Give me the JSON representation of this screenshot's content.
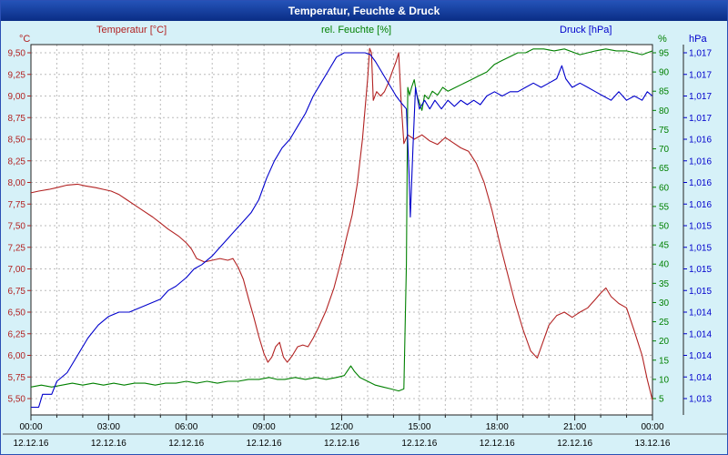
{
  "window": {
    "title": "Temperatur, Feuchte & Druck"
  },
  "header": {
    "temperature_label": "Temperatur [°C]",
    "humidity_label": "rel. Feuchte [%]",
    "pressure_label": "Druck [hPa]",
    "temperature_unit": "°C",
    "humidity_unit": "%",
    "pressure_unit": "hPa"
  },
  "colors": {
    "temperature": "#b22222",
    "humidity": "#008000",
    "pressure": "#0000cc",
    "background": "#d6f1f8",
    "plot_background": "#ffffff",
    "grid": "#bbbbbb",
    "titlebar": "#0a2d85"
  },
  "chart_data": {
    "type": "line",
    "title": "Temperatur, Feuchte & Druck",
    "xlabel": "",
    "legend_position": "top",
    "grid": "on, dashed, hourly vertical / 0.25°C horizontal",
    "x_axis": {
      "hours_range": [
        0,
        24
      ],
      "tick_labels": [
        "00:00",
        "03:00",
        "06:00",
        "09:00",
        "12:00",
        "15:00",
        "18:00",
        "21:00",
        "00:00"
      ],
      "date_labels": [
        "12.12.16",
        "12.12.16",
        "12.12.16",
        "12.12.16",
        "12.12.16",
        "12.12.16",
        "12.12.16",
        "12.12.16",
        "13.12.16"
      ]
    },
    "y_axes": {
      "temperature": {
        "unit": "°C",
        "color": "#b22222",
        "min": 5.5,
        "max": 9.5,
        "side": "left",
        "tick_labels": [
          "9,50",
          "9,25",
          "9,00",
          "8,75",
          "8,50",
          "8,25",
          "8,00",
          "7,75",
          "7,50",
          "7,25",
          "7,00",
          "6,75",
          "6,50",
          "6,25",
          "6,00",
          "5,75",
          "5,50"
        ]
      },
      "humidity": {
        "unit": "%",
        "color": "#008000",
        "min": 5,
        "max": 95,
        "side": "right-inner",
        "tick_labels": [
          "95",
          "90",
          "85",
          "80",
          "75",
          "70",
          "65",
          "60",
          "55",
          "50",
          "45",
          "40",
          "35",
          "30",
          "25",
          "20",
          "15",
          "10",
          "5"
        ]
      },
      "pressure": {
        "unit": "hPa",
        "color": "#0000cc",
        "min": 1013,
        "max": 1017,
        "side": "right-outer",
        "tick_labels": [
          "1,017",
          "1,017",
          "1,017",
          "1,017",
          "1,016",
          "1,016",
          "1,016",
          "1,016",
          "1,015",
          "1,015",
          "1,015",
          "1,015",
          "1,014",
          "1,014",
          "1,014",
          "1,014",
          "1,013"
        ]
      }
    },
    "series": [
      {
        "name": "Temperatur [°C]",
        "axis": "temperature",
        "color": "#b22222",
        "points": [
          [
            0,
            7.88
          ],
          [
            0.3,
            7.9
          ],
          [
            0.7,
            7.92
          ],
          [
            1,
            7.94
          ],
          [
            1.4,
            7.97
          ],
          [
            1.8,
            7.98
          ],
          [
            2.1,
            7.96
          ],
          [
            2.5,
            7.94
          ],
          [
            2.8,
            7.92
          ],
          [
            3.1,
            7.9
          ],
          [
            3.4,
            7.86
          ],
          [
            3.7,
            7.8
          ],
          [
            4,
            7.74
          ],
          [
            4.3,
            7.68
          ],
          [
            4.7,
            7.6
          ],
          [
            5,
            7.53
          ],
          [
            5.3,
            7.46
          ],
          [
            5.7,
            7.38
          ],
          [
            6,
            7.3
          ],
          [
            6.2,
            7.23
          ],
          [
            6.4,
            7.12
          ],
          [
            6.7,
            7.08
          ],
          [
            7,
            7.1
          ],
          [
            7.3,
            7.12
          ],
          [
            7.6,
            7.1
          ],
          [
            7.8,
            7.12
          ],
          [
            8,
            7.02
          ],
          [
            8.2,
            6.88
          ],
          [
            8.4,
            6.66
          ],
          [
            8.6,
            6.45
          ],
          [
            8.8,
            6.22
          ],
          [
            9,
            6.02
          ],
          [
            9.15,
            5.92
          ],
          [
            9.3,
            5.98
          ],
          [
            9.45,
            6.1
          ],
          [
            9.6,
            6.15
          ],
          [
            9.75,
            5.98
          ],
          [
            9.9,
            5.92
          ],
          [
            10.1,
            6.0
          ],
          [
            10.3,
            6.1
          ],
          [
            10.5,
            6.12
          ],
          [
            10.7,
            6.1
          ],
          [
            10.9,
            6.2
          ],
          [
            11.1,
            6.32
          ],
          [
            11.4,
            6.52
          ],
          [
            11.7,
            6.78
          ],
          [
            12,
            7.12
          ],
          [
            12.2,
            7.38
          ],
          [
            12.4,
            7.62
          ],
          [
            12.6,
            7.98
          ],
          [
            12.8,
            8.5
          ],
          [
            13,
            9.2
          ],
          [
            13.08,
            9.55
          ],
          [
            13.15,
            9.5
          ],
          [
            13.22,
            8.95
          ],
          [
            13.35,
            9.05
          ],
          [
            13.5,
            9.0
          ],
          [
            13.65,
            9.05
          ],
          [
            13.8,
            9.15
          ],
          [
            13.95,
            9.28
          ],
          [
            14.1,
            9.4
          ],
          [
            14.2,
            9.5
          ],
          [
            14.3,
            8.9
          ],
          [
            14.4,
            8.45
          ],
          [
            14.55,
            8.55
          ],
          [
            14.8,
            8.5
          ],
          [
            15.1,
            8.55
          ],
          [
            15.4,
            8.48
          ],
          [
            15.7,
            8.44
          ],
          [
            16,
            8.52
          ],
          [
            16.3,
            8.46
          ],
          [
            16.6,
            8.4
          ],
          [
            16.9,
            8.36
          ],
          [
            17.2,
            8.22
          ],
          [
            17.5,
            8.0
          ],
          [
            17.8,
            7.68
          ],
          [
            18.1,
            7.3
          ],
          [
            18.4,
            6.95
          ],
          [
            18.7,
            6.6
          ],
          [
            19,
            6.3
          ],
          [
            19.3,
            6.05
          ],
          [
            19.55,
            5.97
          ],
          [
            19.8,
            6.18
          ],
          [
            20,
            6.35
          ],
          [
            20.3,
            6.46
          ],
          [
            20.6,
            6.5
          ],
          [
            20.9,
            6.44
          ],
          [
            21.2,
            6.5
          ],
          [
            21.5,
            6.55
          ],
          [
            21.8,
            6.65
          ],
          [
            22,
            6.72
          ],
          [
            22.2,
            6.78
          ],
          [
            22.4,
            6.68
          ],
          [
            22.7,
            6.6
          ],
          [
            23,
            6.55
          ],
          [
            23.3,
            6.28
          ],
          [
            23.6,
            6.0
          ],
          [
            23.8,
            5.72
          ],
          [
            24,
            5.48
          ]
        ]
      },
      {
        "name": "rel. Feuchte [%]",
        "axis": "humidity",
        "color": "#008000",
        "points": [
          [
            0,
            8
          ],
          [
            0.4,
            8.5
          ],
          [
            0.8,
            8
          ],
          [
            1.2,
            8.5
          ],
          [
            1.6,
            9
          ],
          [
            2,
            8.5
          ],
          [
            2.4,
            9
          ],
          [
            2.8,
            8.5
          ],
          [
            3.2,
            9
          ],
          [
            3.6,
            8.5
          ],
          [
            4,
            9
          ],
          [
            4.4,
            9
          ],
          [
            4.8,
            8.5
          ],
          [
            5.2,
            9
          ],
          [
            5.6,
            9
          ],
          [
            6,
            9.5
          ],
          [
            6.4,
            9
          ],
          [
            6.8,
            9.5
          ],
          [
            7.2,
            9
          ],
          [
            7.6,
            9.5
          ],
          [
            8,
            9.5
          ],
          [
            8.4,
            10
          ],
          [
            8.8,
            10
          ],
          [
            9.2,
            10.5
          ],
          [
            9.5,
            10
          ],
          [
            9.8,
            10
          ],
          [
            10.2,
            10.5
          ],
          [
            10.6,
            10
          ],
          [
            11,
            10.5
          ],
          [
            11.4,
            10
          ],
          [
            11.8,
            10.5
          ],
          [
            12.1,
            11
          ],
          [
            12.35,
            13.5
          ],
          [
            12.5,
            12
          ],
          [
            12.7,
            10.5
          ],
          [
            13,
            9.5
          ],
          [
            13.3,
            8.5
          ],
          [
            13.6,
            8
          ],
          [
            13.9,
            7.5
          ],
          [
            14.2,
            7
          ],
          [
            14.4,
            7.5
          ],
          [
            14.5,
            40
          ],
          [
            14.55,
            86
          ],
          [
            14.62,
            84
          ],
          [
            14.7,
            86
          ],
          [
            14.8,
            88
          ],
          [
            14.9,
            84
          ],
          [
            15,
            82
          ],
          [
            15.1,
            80
          ],
          [
            15.2,
            84
          ],
          [
            15.35,
            83
          ],
          [
            15.5,
            85
          ],
          [
            15.7,
            84
          ],
          [
            15.9,
            86
          ],
          [
            16.1,
            85
          ],
          [
            16.4,
            86
          ],
          [
            16.7,
            87
          ],
          [
            17,
            88
          ],
          [
            17.3,
            89
          ],
          [
            17.6,
            90
          ],
          [
            17.9,
            92
          ],
          [
            18.2,
            93
          ],
          [
            18.5,
            94
          ],
          [
            18.8,
            95
          ],
          [
            19.1,
            95
          ],
          [
            19.4,
            96
          ],
          [
            19.8,
            96
          ],
          [
            20.2,
            95.5
          ],
          [
            20.6,
            96
          ],
          [
            21,
            95
          ],
          [
            21.2,
            94.5
          ],
          [
            21.5,
            95
          ],
          [
            21.8,
            95.5
          ],
          [
            22.2,
            96
          ],
          [
            22.6,
            95.5
          ],
          [
            23,
            95.5
          ],
          [
            23.3,
            95
          ],
          [
            23.6,
            94.5
          ],
          [
            24,
            95.5
          ]
        ]
      },
      {
        "name": "Druck [hPa]",
        "axis": "pressure",
        "color": "#0000cc",
        "points": [
          [
            0,
            1012.9
          ],
          [
            0.3,
            1012.9
          ],
          [
            0.45,
            1013.05
          ],
          [
            0.8,
            1013.05
          ],
          [
            1,
            1013.2
          ],
          [
            1.4,
            1013.3
          ],
          [
            1.8,
            1013.5
          ],
          [
            2.2,
            1013.7
          ],
          [
            2.6,
            1013.85
          ],
          [
            3,
            1013.95
          ],
          [
            3.4,
            1014.0
          ],
          [
            3.8,
            1014.0
          ],
          [
            4.2,
            1014.05
          ],
          [
            4.6,
            1014.1
          ],
          [
            5,
            1014.15
          ],
          [
            5.3,
            1014.25
          ],
          [
            5.6,
            1014.3
          ],
          [
            6,
            1014.4
          ],
          [
            6.3,
            1014.5
          ],
          [
            6.6,
            1014.55
          ],
          [
            7,
            1014.65
          ],
          [
            7.3,
            1014.75
          ],
          [
            7.6,
            1014.85
          ],
          [
            7.9,
            1014.95
          ],
          [
            8.2,
            1015.05
          ],
          [
            8.5,
            1015.15
          ],
          [
            8.8,
            1015.3
          ],
          [
            9.1,
            1015.55
          ],
          [
            9.4,
            1015.75
          ],
          [
            9.7,
            1015.9
          ],
          [
            10,
            1016.0
          ],
          [
            10.3,
            1016.15
          ],
          [
            10.6,
            1016.3
          ],
          [
            10.9,
            1016.5
          ],
          [
            11.2,
            1016.65
          ],
          [
            11.5,
            1016.8
          ],
          [
            11.8,
            1016.95
          ],
          [
            12.1,
            1017.0
          ],
          [
            12.5,
            1017.0
          ],
          [
            12.9,
            1017.0
          ],
          [
            13.1,
            1016.98
          ],
          [
            13.3,
            1016.9
          ],
          [
            13.5,
            1016.8
          ],
          [
            13.7,
            1016.7
          ],
          [
            13.9,
            1016.6
          ],
          [
            14.1,
            1016.5
          ],
          [
            14.3,
            1016.42
          ],
          [
            14.5,
            1016.35
          ],
          [
            14.6,
            1015.6
          ],
          [
            14.65,
            1015.1
          ],
          [
            14.75,
            1015.9
          ],
          [
            14.85,
            1016.6
          ],
          [
            15,
            1016.35
          ],
          [
            15.2,
            1016.45
          ],
          [
            15.4,
            1016.35
          ],
          [
            15.6,
            1016.45
          ],
          [
            15.85,
            1016.35
          ],
          [
            16.1,
            1016.45
          ],
          [
            16.35,
            1016.38
          ],
          [
            16.6,
            1016.45
          ],
          [
            16.85,
            1016.4
          ],
          [
            17.1,
            1016.45
          ],
          [
            17.35,
            1016.4
          ],
          [
            17.6,
            1016.5
          ],
          [
            17.9,
            1016.55
          ],
          [
            18.2,
            1016.5
          ],
          [
            18.5,
            1016.55
          ],
          [
            18.8,
            1016.55
          ],
          [
            19.1,
            1016.6
          ],
          [
            19.4,
            1016.65
          ],
          [
            19.7,
            1016.6
          ],
          [
            20,
            1016.65
          ],
          [
            20.3,
            1016.7
          ],
          [
            20.5,
            1016.85
          ],
          [
            20.65,
            1016.7
          ],
          [
            20.9,
            1016.6
          ],
          [
            21.2,
            1016.65
          ],
          [
            21.5,
            1016.6
          ],
          [
            21.8,
            1016.55
          ],
          [
            22.1,
            1016.5
          ],
          [
            22.4,
            1016.45
          ],
          [
            22.7,
            1016.55
          ],
          [
            23,
            1016.45
          ],
          [
            23.3,
            1016.5
          ],
          [
            23.6,
            1016.45
          ],
          [
            23.8,
            1016.55
          ],
          [
            24,
            1016.5
          ]
        ]
      }
    ]
  }
}
